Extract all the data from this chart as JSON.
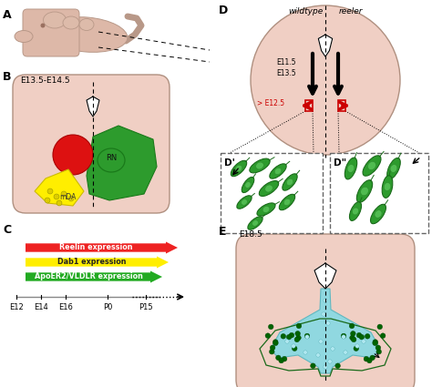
{
  "bg_color": "#f0cfc4",
  "brain_outline_color": "#c8a090",
  "panel_label_fontsize": 9,
  "red_color": "#dd1111",
  "yellow_color": "#ffee00",
  "green_dark": "#1a7a1a",
  "green_mid": "#2d9b2d",
  "cyan_color": "#90d8d8",
  "cyan_light": "#b8e8e8",
  "pink_body": "#e8c0b0",
  "arrow_labels": [
    "Reelin expression",
    "Dab1 expression",
    "ApoER2/VLDLR expression"
  ],
  "arrow_colors": [
    "#ee2222",
    "#ffee00",
    "#22aa22"
  ],
  "time_labels": [
    "E12",
    "E14",
    "E16",
    "P0",
    "P15"
  ]
}
